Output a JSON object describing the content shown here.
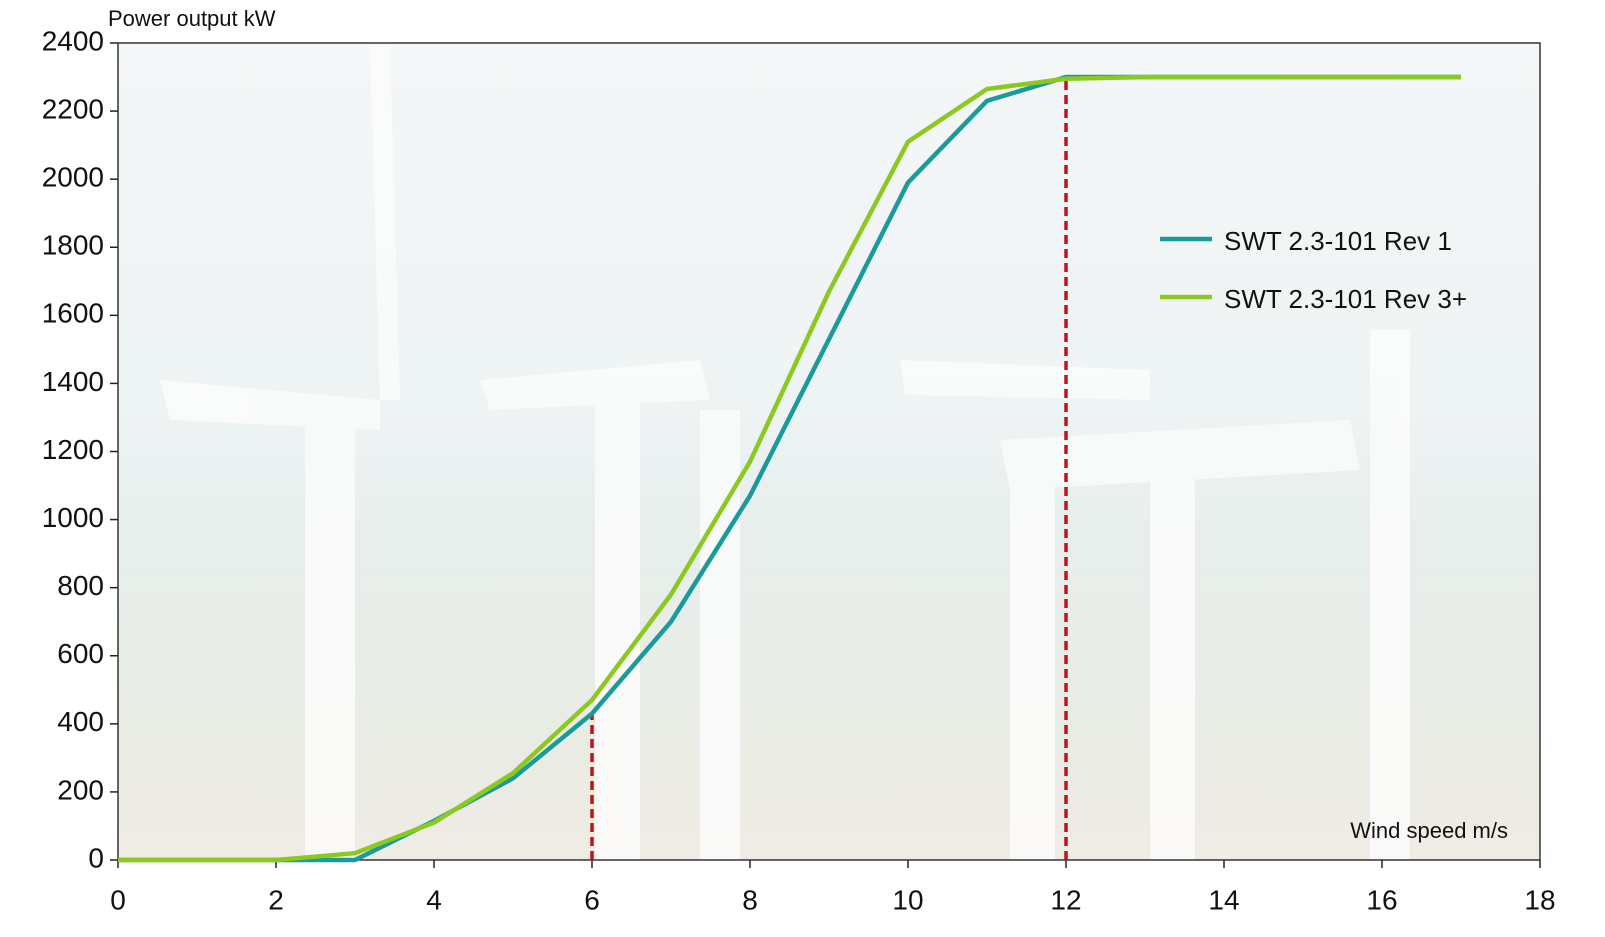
{
  "chart_data": {
    "type": "line",
    "y_label": "Power output kW",
    "x_label": "Wind speed m/s",
    "x": [
      0,
      1,
      2,
      3,
      4,
      5,
      6,
      7,
      8,
      9,
      10,
      11,
      12,
      13,
      14,
      15,
      16,
      17
    ],
    "series": [
      {
        "name": "SWT 2.3-101 Rev 1",
        "color": "#1a9a9a",
        "values": [
          0,
          0,
          0,
          0,
          115,
          240,
          430,
          700,
          1070,
          1530,
          1990,
          2230,
          2300,
          2300,
          2300,
          2300,
          2300,
          2300
        ]
      },
      {
        "name": "SWT 2.3-101 Rev 3+",
        "color": "#8cc920",
        "values": [
          0,
          0,
          0,
          20,
          110,
          255,
          470,
          780,
          1170,
          1670,
          2110,
          2265,
          2295,
          2300,
          2300,
          2300,
          2300,
          2300
        ]
      }
    ],
    "reference_lines": [
      {
        "x": 6,
        "y": 430,
        "color": "#c0141c"
      },
      {
        "x": 12,
        "y": 2300,
        "color": "#c0141c"
      }
    ],
    "xlim": [
      0,
      18
    ],
    "xticks": [
      0,
      2,
      4,
      6,
      8,
      10,
      12,
      14,
      16,
      18
    ],
    "ylim": [
      0,
      2400
    ],
    "yticks": [
      0,
      200,
      400,
      600,
      800,
      1000,
      1200,
      1400,
      1600,
      1800,
      2000,
      2200,
      2400
    ],
    "legend": "right"
  }
}
